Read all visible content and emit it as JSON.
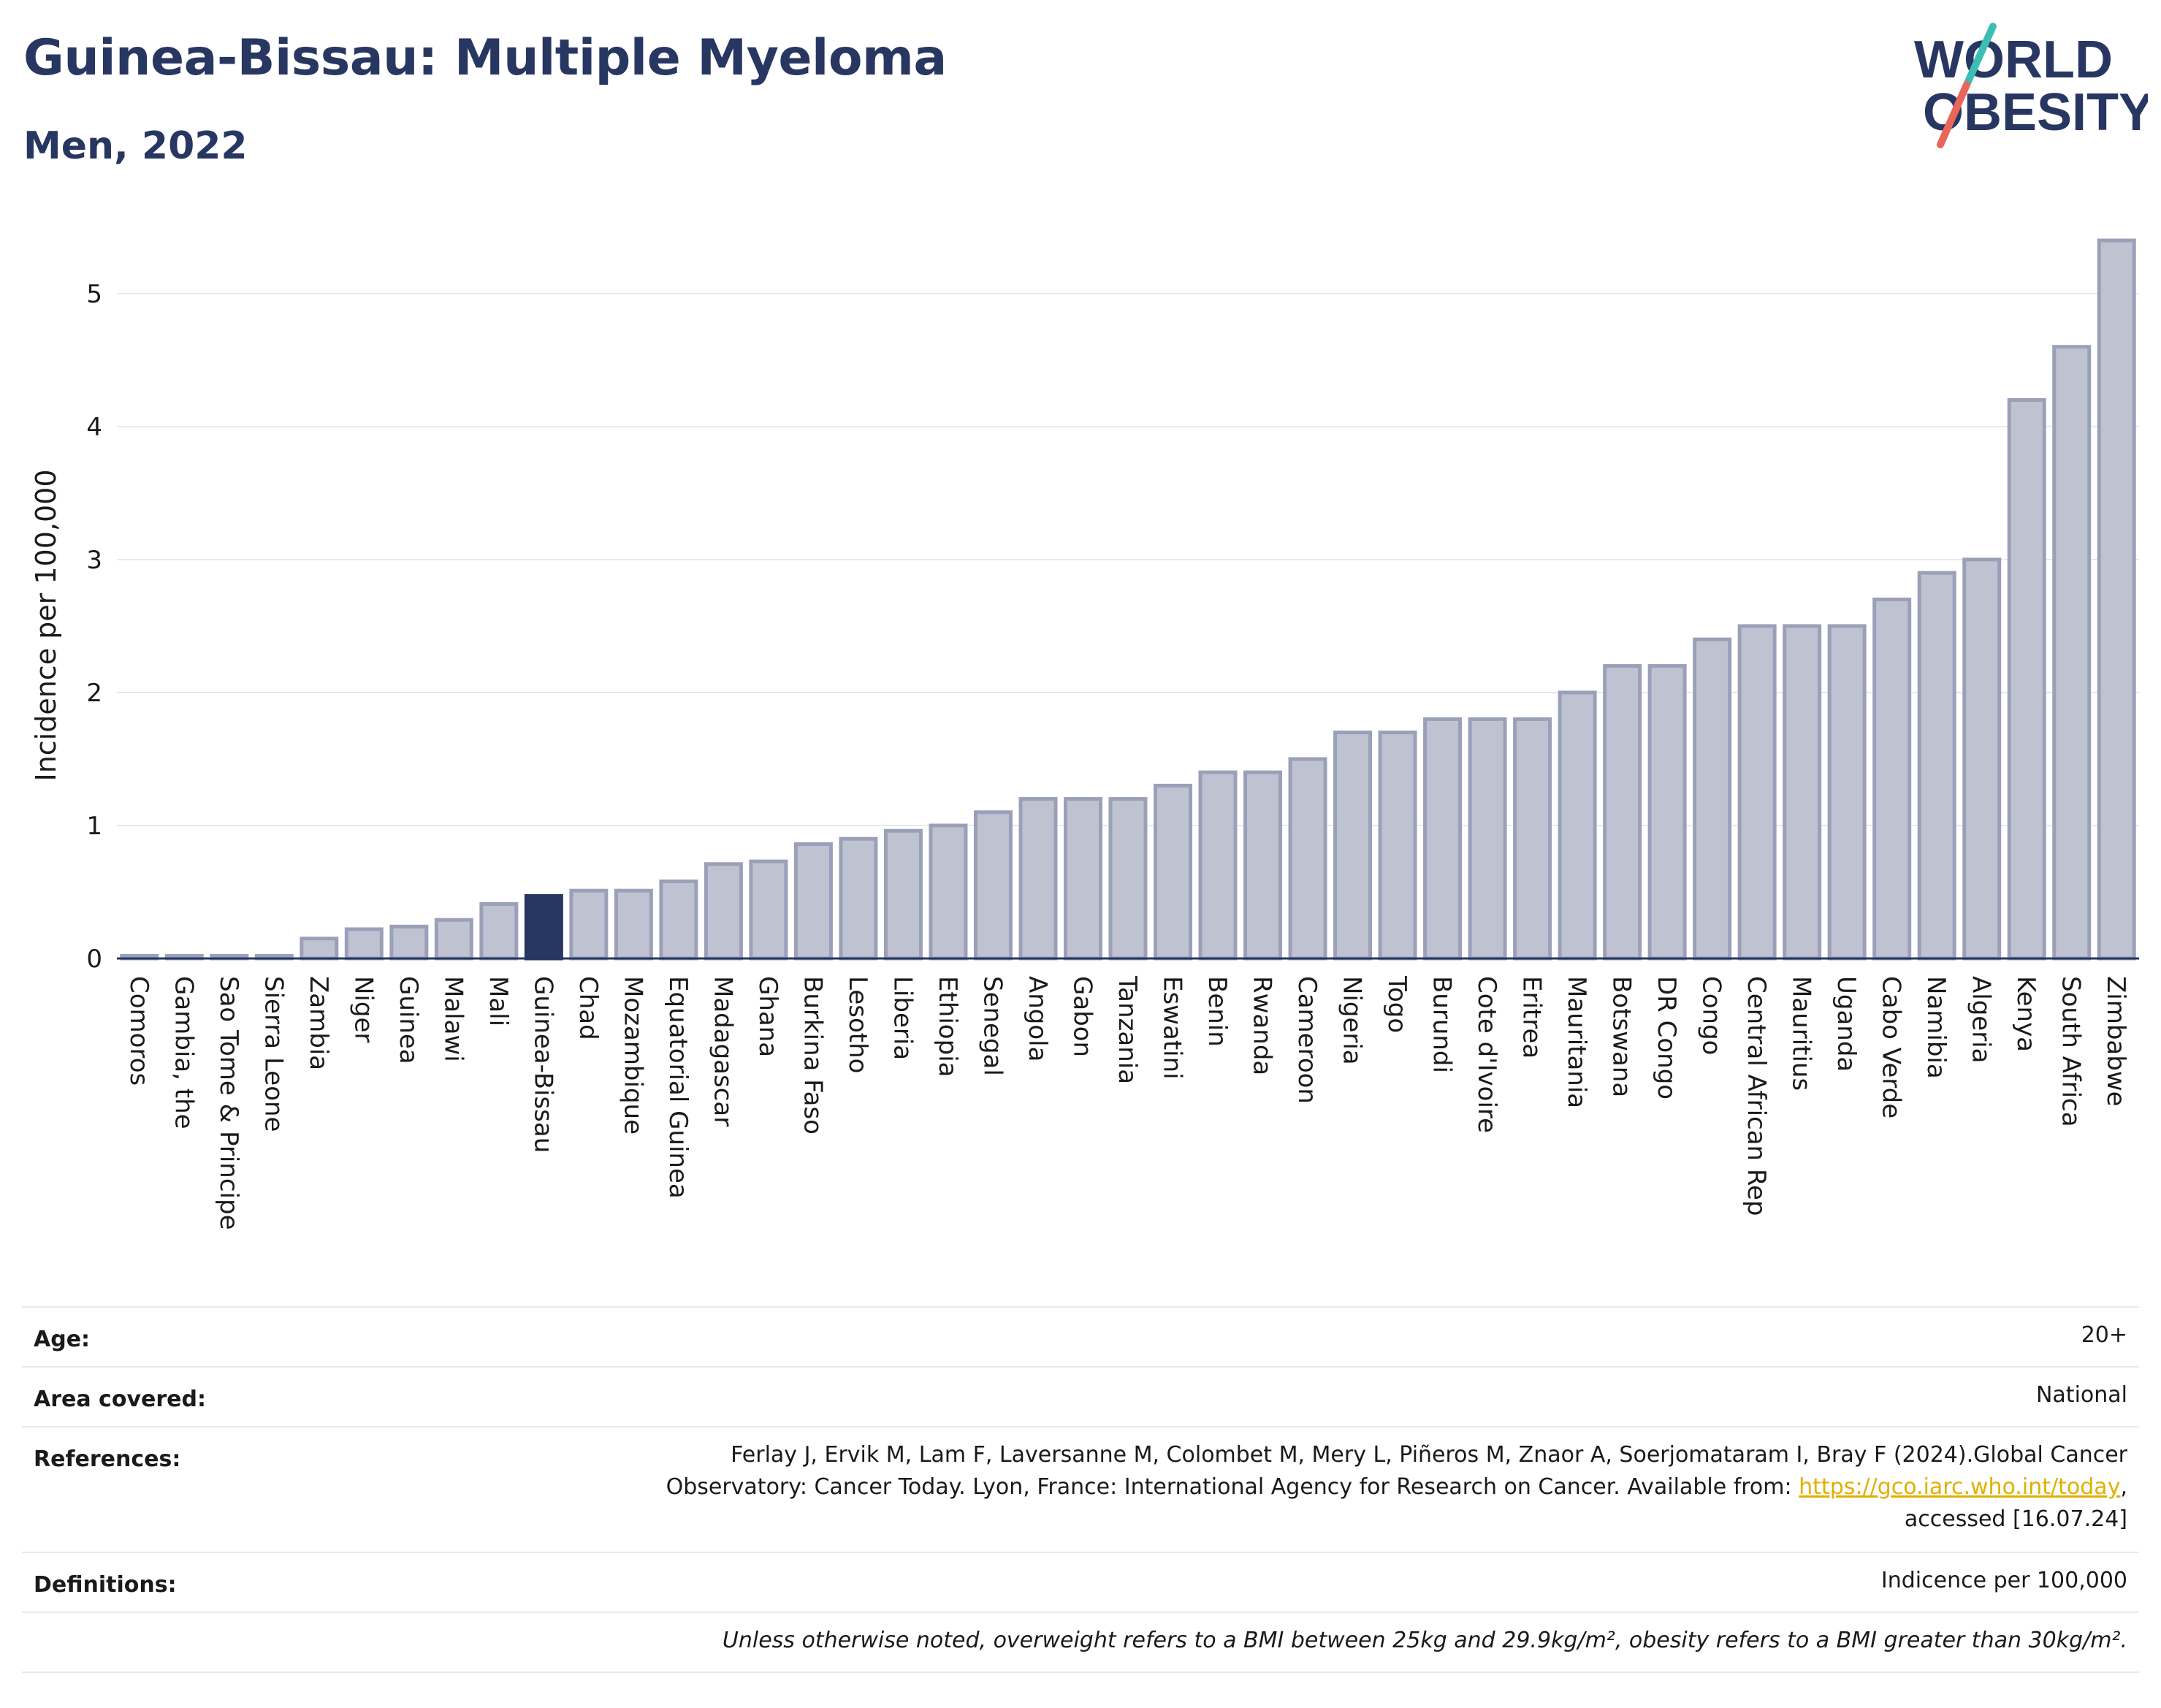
{
  "header": {
    "title": "Guinea-Bissau: Multiple Myeloma",
    "subtitle": "Men, 2022",
    "logo_text_line1": "WORLD",
    "logo_text_line2": "OBESITY"
  },
  "colors": {
    "highlight_bar": "#283662",
    "bar_fill": "#bfc3d1",
    "bar_stroke": "#9aa0b8",
    "title": "#283662",
    "logo_slash_top": "#3bbfb5",
    "logo_slash_bottom": "#e8665a",
    "link": "#e0b000"
  },
  "chart_data": {
    "type": "bar",
    "ylabel": "Incidence per 100,000",
    "xlabel": "",
    "ylim": [
      0,
      5.45
    ],
    "yticks": [
      0,
      1,
      2,
      3,
      4,
      5
    ],
    "grid": true,
    "highlight": "Guinea-Bissau",
    "categories": [
      "Comoros",
      "Gambia, the",
      "Sao Tome & Principe",
      "Sierra Leone",
      "Zambia",
      "Niger",
      "Guinea",
      "Malawi",
      "Mali",
      "Guinea-Bissau",
      "Chad",
      "Mozambique",
      "Equatorial Guinea",
      "Madagascar",
      "Ghana",
      "Burkina Faso",
      "Lesotho",
      "Liberia",
      "Ethiopia",
      "Senegal",
      "Angola",
      "Gabon",
      "Tanzania",
      "Eswatini",
      "Benin",
      "Rwanda",
      "Cameroon",
      "Nigeria",
      "Togo",
      "Burundi",
      "Cote d'Ivoire",
      "Eritrea",
      "Mauritania",
      "Botswana",
      "DR Congo",
      "Congo",
      "Central African Rep",
      "Mauritius",
      "Uganda",
      "Cabo Verde",
      "Namibia",
      "Algeria",
      "Kenya",
      "South Africa",
      "Zimbabwe"
    ],
    "values": [
      0.02,
      0.02,
      0.02,
      0.02,
      0.15,
      0.22,
      0.24,
      0.29,
      0.41,
      0.47,
      0.51,
      0.51,
      0.58,
      0.71,
      0.73,
      0.86,
      0.9,
      0.96,
      1.0,
      1.1,
      1.2,
      1.2,
      1.2,
      1.3,
      1.4,
      1.4,
      1.5,
      1.7,
      1.7,
      1.8,
      1.8,
      1.8,
      2.0,
      2.2,
      2.2,
      2.4,
      2.5,
      2.5,
      2.5,
      2.7,
      2.9,
      3.0,
      4.2,
      4.6,
      5.4
    ]
  },
  "info": {
    "age_label": "Age:",
    "age_value": "20+",
    "area_label": "Area covered:",
    "area_value": "National",
    "ref_label": "References:",
    "ref_line1": "Ferlay J, Ervik M, Lam F, Laversanne M, Colombet M, Mery L, Piñeros M, Znaor A, Soerjomataram I, Bray F (2024).Global Cancer",
    "ref_line2_pre": "Observatory: Cancer Today. Lyon, France: International Agency for Research on Cancer. Available from: ",
    "ref_link": "https://gco.iarc.who.int/today",
    "ref_line2_post": ",",
    "ref_line3": "accessed [16.07.24]",
    "def_label": "Definitions:",
    "def_value": "Indicence per 100,000",
    "note": "Unless otherwise noted, overweight refers to a BMI between 25kg and 29.9kg/m², obesity refers to a BMI greater than 30kg/m²."
  }
}
